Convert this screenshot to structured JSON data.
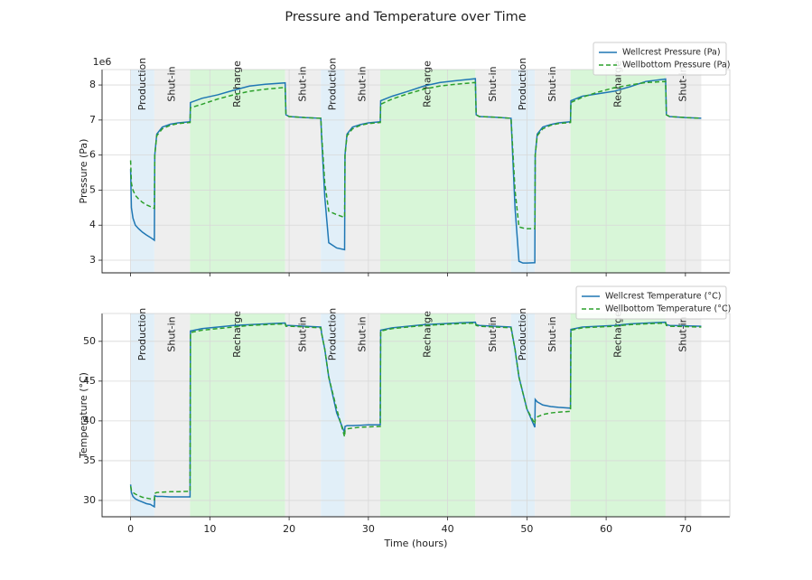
{
  "title": "Pressure and Temperature over Time",
  "chart_data": [
    {
      "type": "line",
      "y_label": "Pressure (Pa)",
      "y_offset_label": "1e6",
      "legend": "upper right",
      "grid": true,
      "xlim": [
        -3.6,
        75.6
      ],
      "xticks": [
        0,
        10,
        20,
        30,
        40,
        50,
        60,
        70
      ],
      "ylim": [
        2640000,
        8440000
      ],
      "yticks": [
        {
          "value": 3000000,
          "label": "3"
        },
        {
          "value": 4000000,
          "label": "4"
        },
        {
          "value": 5000000,
          "label": "5"
        },
        {
          "value": 6000000,
          "label": "6"
        },
        {
          "value": 7000000,
          "label": "7"
        },
        {
          "value": 8000000,
          "label": "8"
        }
      ],
      "phases": [
        {
          "start": 0,
          "end": 3,
          "label": "Production",
          "color": "#e1eff8"
        },
        {
          "start": 3,
          "end": 7.5,
          "label": "Shut-in",
          "color": "#eeeeee"
        },
        {
          "start": 7.5,
          "end": 19.5,
          "label": "Recharge",
          "color": "#d8f6d8"
        },
        {
          "start": 19.5,
          "end": 24,
          "label": "Shut-in",
          "color": "#eeeeee"
        },
        {
          "start": 24,
          "end": 27,
          "label": "Production",
          "color": "#e1eff8"
        },
        {
          "start": 27,
          "end": 31.5,
          "label": "Shut-in",
          "color": "#eeeeee"
        },
        {
          "start": 31.5,
          "end": 43.5,
          "label": "Recharge",
          "color": "#d8f6d8"
        },
        {
          "start": 43.5,
          "end": 48,
          "label": "Shut-in",
          "color": "#eeeeee"
        },
        {
          "start": 48,
          "end": 51,
          "label": "Production",
          "color": "#e1eff8"
        },
        {
          "start": 51,
          "end": 55.5,
          "label": "Shut-in",
          "color": "#eeeeee"
        },
        {
          "start": 55.5,
          "end": 67.5,
          "label": "Recharge",
          "color": "#d8f6d8"
        },
        {
          "start": 67.5,
          "end": 72,
          "label": "Shut-in",
          "color": "#eeeeee"
        }
      ],
      "x": [
        0,
        0.1,
        0.3,
        0.6,
        1,
        1.5,
        2,
        2.5,
        3,
        3.05,
        3.3,
        4,
        5,
        6,
        7.5,
        7.55,
        9,
        11,
        13,
        15,
        17,
        19.5,
        19.6,
        20,
        22,
        24,
        24.1,
        24.5,
        25,
        26,
        27,
        27.05,
        27.3,
        28,
        29,
        30,
        31.5,
        31.55,
        33,
        35,
        37,
        39,
        41,
        43.5,
        43.6,
        44,
        46,
        48,
        48.5,
        49,
        49.5,
        50,
        51,
        51.05,
        51.3,
        52,
        53,
        54,
        55.5,
        55.55,
        57,
        59,
        61,
        63,
        65,
        67.5,
        67.6,
        68,
        70,
        72
      ],
      "series": [
        {
          "name": "Wellcrest Pressure (Pa)",
          "color": "#1f77b4",
          "linestyle": "solid",
          "values": [
            5600000,
            4500000,
            4200000,
            4000000,
            3900000,
            3800000,
            3720000,
            3650000,
            3570000,
            6000000,
            6600000,
            6800000,
            6880000,
            6920000,
            6950000,
            7500000,
            7620000,
            7720000,
            7850000,
            7970000,
            8020000,
            8060000,
            7150000,
            7100000,
            7070000,
            7050000,
            6500000,
            4800000,
            3500000,
            3350000,
            3300000,
            6000000,
            6600000,
            6800000,
            6870000,
            6920000,
            6950000,
            7550000,
            7680000,
            7820000,
            7970000,
            8070000,
            8120000,
            8180000,
            7150000,
            7100000,
            7080000,
            7050000,
            4500000,
            2970000,
            2920000,
            2920000,
            2930000,
            6000000,
            6600000,
            6800000,
            6870000,
            6920000,
            6950000,
            7550000,
            7680000,
            7750000,
            7820000,
            7950000,
            8100000,
            8170000,
            7150000,
            7100000,
            7070000,
            7050000
          ]
        },
        {
          "name": "Wellbottom Pressure (Pa)",
          "color": "#2ca02c",
          "linestyle": "dashed",
          "values": [
            5850000,
            5200000,
            5000000,
            4850000,
            4750000,
            4650000,
            4580000,
            4530000,
            4480000,
            6000000,
            6550000,
            6750000,
            6850000,
            6900000,
            6930000,
            7350000,
            7450000,
            7600000,
            7720000,
            7820000,
            7880000,
            7930000,
            7150000,
            7100000,
            7070000,
            7050000,
            6600000,
            5200000,
            4400000,
            4300000,
            4220000,
            6000000,
            6550000,
            6750000,
            6850000,
            6900000,
            6930000,
            7450000,
            7600000,
            7750000,
            7880000,
            7970000,
            8020000,
            8070000,
            7150000,
            7100000,
            7080000,
            7050000,
            5000000,
            3950000,
            3920000,
            3900000,
            3900000,
            6000000,
            6550000,
            6750000,
            6850000,
            6900000,
            6930000,
            7500000,
            7650000,
            7800000,
            7920000,
            8000000,
            8070000,
            8100000,
            7150000,
            7100000,
            7070000,
            7050000
          ]
        }
      ]
    },
    {
      "type": "line",
      "x_label": "Time (hours)",
      "y_label": "Temperature (°C)",
      "legend": "upper right",
      "grid": true,
      "xlim": [
        -3.6,
        75.6
      ],
      "xticks": [
        0,
        10,
        20,
        30,
        40,
        50,
        60,
        70
      ],
      "ylim": [
        27.95,
        53.5
      ],
      "yticks": [
        30,
        35,
        40,
        45,
        50
      ],
      "phases": [
        {
          "start": 0,
          "end": 3,
          "label": "Production",
          "color": "#e1eff8"
        },
        {
          "start": 3,
          "end": 7.5,
          "label": "Shut-in",
          "color": "#eeeeee"
        },
        {
          "start": 7.5,
          "end": 19.5,
          "label": "Recharge",
          "color": "#d8f6d8"
        },
        {
          "start": 19.5,
          "end": 24,
          "label": "Shut-in",
          "color": "#eeeeee"
        },
        {
          "start": 24,
          "end": 27,
          "label": "Production",
          "color": "#e1eff8"
        },
        {
          "start": 27,
          "end": 31.5,
          "label": "Shut-in",
          "color": "#eeeeee"
        },
        {
          "start": 31.5,
          "end": 43.5,
          "label": "Recharge",
          "color": "#d8f6d8"
        },
        {
          "start": 43.5,
          "end": 48,
          "label": "Shut-in",
          "color": "#eeeeee"
        },
        {
          "start": 48,
          "end": 51,
          "label": "Production",
          "color": "#e1eff8"
        },
        {
          "start": 51,
          "end": 55.5,
          "label": "Shut-in",
          "color": "#eeeeee"
        },
        {
          "start": 55.5,
          "end": 67.5,
          "label": "Recharge",
          "color": "#d8f6d8"
        },
        {
          "start": 67.5,
          "end": 72,
          "label": "Shut-in",
          "color": "#eeeeee"
        }
      ],
      "x": [
        0,
        0.1,
        0.3,
        0.6,
        1,
        1.5,
        2,
        2.5,
        3,
        3.05,
        3.3,
        4,
        5,
        6,
        7.5,
        7.55,
        9,
        11,
        13,
        15,
        17,
        19.5,
        19.6,
        20,
        22,
        24,
        24.1,
        24.5,
        25,
        26,
        27,
        27.05,
        27.3,
        28,
        29,
        30,
        31.5,
        31.55,
        33,
        35,
        37,
        39,
        41,
        43.5,
        43.6,
        44,
        46,
        48,
        48.5,
        49,
        49.5,
        50,
        51,
        51.05,
        51.3,
        52,
        53,
        54,
        55.5,
        55.55,
        57,
        59,
        61,
        63,
        65,
        67.5,
        67.6,
        68,
        70,
        72
      ],
      "series": [
        {
          "name": "Wellcrest Temperature (°C)",
          "color": "#1f77b4",
          "linestyle": "solid",
          "values": [
            32,
            31,
            30.5,
            30.2,
            30,
            29.8,
            29.6,
            29.5,
            29.2,
            30.6,
            30.5,
            30.5,
            30.45,
            30.45,
            30.45,
            51.3,
            51.6,
            51.8,
            52,
            52.1,
            52.2,
            52.3,
            52,
            52,
            51.9,
            51.8,
            51,
            49,
            45.5,
            41,
            38.5,
            39.3,
            39.4,
            39.4,
            39.45,
            39.5,
            39.5,
            51.4,
            51.7,
            51.9,
            52.1,
            52.2,
            52.3,
            52.4,
            52.1,
            52,
            51.9,
            51.8,
            49,
            45.5,
            43.5,
            41.5,
            39.2,
            42.7,
            42.4,
            42,
            41.8,
            41.7,
            41.6,
            51.5,
            51.8,
            51.9,
            52,
            52.2,
            52.3,
            52.4,
            52.1,
            52,
            51.95,
            51.9
          ]
        },
        {
          "name": "Wellbottom Temperature (°C)",
          "color": "#2ca02c",
          "linestyle": "dashed",
          "values": [
            31.8,
            31.3,
            31,
            30.8,
            30.6,
            30.4,
            30.3,
            30.2,
            30.1,
            30.9,
            31,
            31.05,
            31.1,
            31.1,
            31.15,
            51.1,
            51.4,
            51.6,
            51.8,
            52,
            52.1,
            52.2,
            51.9,
            51.9,
            51.8,
            51.7,
            51,
            49,
            45.5,
            41.5,
            38,
            38.8,
            39,
            39.1,
            39.2,
            39.25,
            39.3,
            51.3,
            51.6,
            51.8,
            52,
            52.1,
            52.2,
            52.3,
            52,
            51.9,
            51.8,
            51.7,
            49,
            45.5,
            43.5,
            41.5,
            39.6,
            40.2,
            40.5,
            40.8,
            41,
            41.1,
            41.2,
            51.4,
            51.7,
            51.8,
            51.9,
            52.1,
            52.2,
            52.3,
            52,
            51.9,
            51.85,
            51.8
          ]
        }
      ]
    }
  ]
}
